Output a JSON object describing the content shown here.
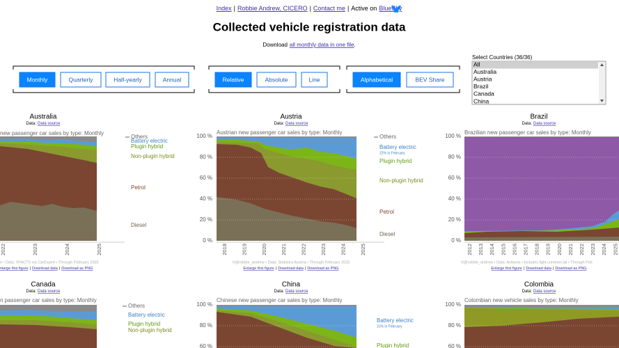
{
  "nav": {
    "links": [
      "Index",
      "Robbie Andrew, CICERO",
      "Contact me"
    ],
    "separator": "|",
    "active_text": "Active on",
    "bluesky": "BlueSky"
  },
  "header": {
    "title": "Collected vehicle registration data"
  },
  "download": {
    "prefix": "Download",
    "link": "all monthly data in one file",
    "suffix": "."
  },
  "button_groups": [
    {
      "buttons": [
        "Monthly",
        "Quarterly",
        "Half-yearly",
        "Annual"
      ],
      "selected": 0
    },
    {
      "buttons": [
        "Relative",
        "Absolute",
        "Line"
      ],
      "selected": 0
    },
    {
      "buttons": [
        "Alphabetical",
        "BEV Share"
      ],
      "selected": 0
    }
  ],
  "country_select": {
    "label": "Select Countries (36/36)",
    "options": [
      "All",
      "Australia",
      "Austria",
      "Brazil",
      "Canada",
      "China"
    ],
    "selected": 0
  },
  "link_separator": "|",
  "panels": [
    {
      "title": "Australia",
      "data_label": "Data:",
      "source": "Data source",
      "subtitle": "new passenger car sales by type: Monthly",
      "yticks": [],
      "xticks": [
        "2022",
        "2023",
        "2024",
        "2025"
      ],
      "legend": [
        {
          "label": "Others",
          "color": "#666666"
        },
        {
          "label": "Battery electric",
          "color": "#3f82c8"
        },
        {
          "label": "Plugin hybrid",
          "color": "#5e9a10"
        },
        {
          "label": "Non-plugin hybrid",
          "color": "#7a8a1a"
        },
        {
          "label": "Petrol",
          "color": "#7a4632"
        },
        {
          "label": "Diesel",
          "color": "#6e6552"
        }
      ],
      "footer": "e • Data: VFACTS via CarExpert • Through February 2025",
      "links": [
        "nlarge this figure",
        "Download data",
        "Download as PNG"
      ]
    },
    {
      "title": "Austria",
      "data_label": "Data:",
      "source": "Data source",
      "subtitle": "Austrian new passenger car sales by type: Monthly",
      "yticks": [
        "100 %",
        "80 %",
        "60 %",
        "40 %",
        "20 %",
        "0 %"
      ],
      "xticks": [
        "2018",
        "2019",
        "2020",
        "2021",
        "2022",
        "2023",
        "2024",
        "2025"
      ],
      "legend": [
        {
          "label": "Others",
          "color": "#666666"
        },
        {
          "label": "Battery electric",
          "color": "#3f82c8",
          "note": "22% in February"
        },
        {
          "label": "Plugin hybrid",
          "color": "#5e9a10"
        },
        {
          "label": "Non-plugin hybrid",
          "color": "#7a8a1a"
        },
        {
          "label": "Petrol",
          "color": "#7a4632"
        },
        {
          "label": "Diesel",
          "color": "#6e6552"
        }
      ],
      "footer": "©@robbie_andrew • Data: Statistics Austria • Through February 2025",
      "links": [
        "Enlarge this figure",
        "Download data",
        "Download as PNG"
      ]
    },
    {
      "title": "Brazil",
      "data_label": "Data:",
      "source": "Data source",
      "subtitle": "Brazilian new passenger car sales by type: Monthly",
      "yticks": [
        "100 %",
        "80 %",
        "60 %",
        "40 %",
        "20 %",
        "0 %"
      ],
      "xticks": [
        "2012",
        "2013",
        "2014",
        "2015",
        "2016",
        "2017",
        "2018",
        "2019",
        "2020",
        "2021",
        "2022",
        "2023",
        "2024",
        "2025"
      ],
      "legend": [],
      "footer": "©@robbie_andrew • Data: Anfavea • Includes light commercial • Through Feb",
      "links": [
        "Enlarge this figure",
        "Download data",
        "Download as PNG"
      ]
    },
    {
      "title": "Canada",
      "data_label": "Data:",
      "source": "Data source",
      "subtitle": "n passenger car sales by type: Monthly",
      "yticks": [],
      "xticks": [],
      "legend": [
        {
          "label": "Others",
          "color": "#666666"
        },
        {
          "label": "Battery electric",
          "color": "#3f82c8"
        },
        {
          "label": "Plugin hybrid",
          "color": "#5e9a10"
        },
        {
          "label": "Non-plugin hybrid",
          "color": "#7a8a1a"
        }
      ],
      "links": []
    },
    {
      "title": "China",
      "data_label": "Data:",
      "source": "Data source",
      "subtitle": "Chinese new passenger car sales by type: Monthly",
      "yticks": [
        "100 %",
        "80 %",
        "60 %"
      ],
      "xticks": [],
      "legend": [
        {
          "label": "Battery electric",
          "color": "#3f82c8",
          "note": "31% in February"
        },
        {
          "label": "Plugin hybrid",
          "color": "#5e9a10"
        }
      ],
      "links": []
    },
    {
      "title": "Colombia",
      "data_label": "Data:",
      "source": "Data source",
      "subtitle": "Colombian new vehicle sales by type: Monthly",
      "yticks": [
        "100 %",
        "80 %",
        "60 %"
      ],
      "xticks": [],
      "legend": [],
      "links": []
    }
  ]
}
